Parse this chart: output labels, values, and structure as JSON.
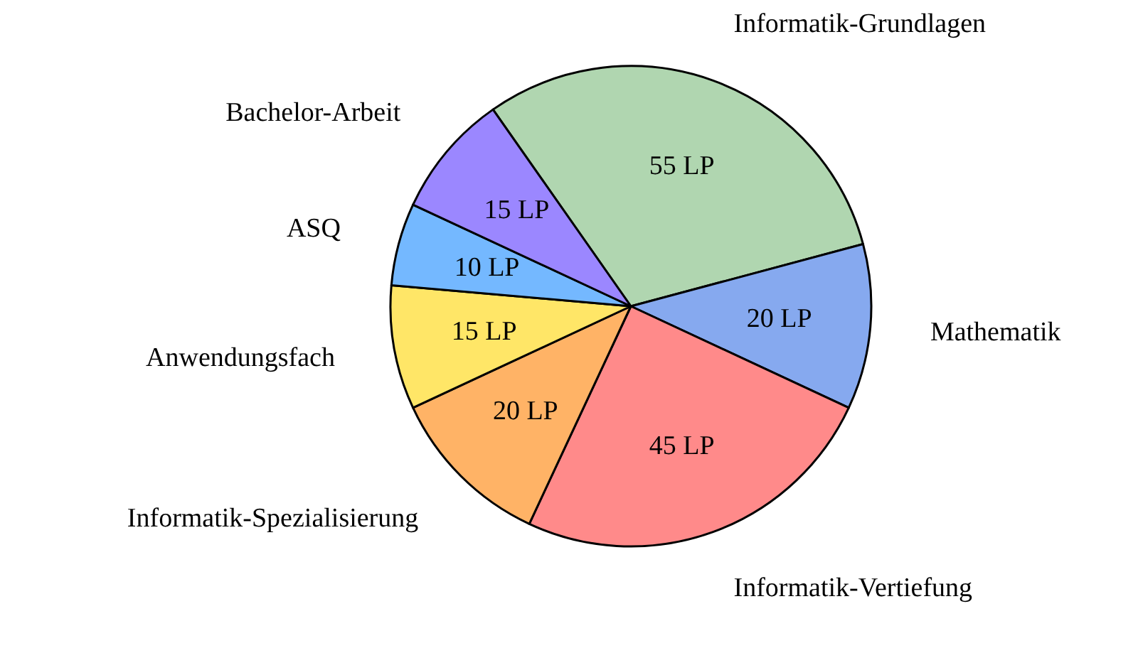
{
  "chart_data": {
    "type": "pie",
    "categories": [
      "Informatik-Grundlagen",
      "Mathematik",
      "Informatik-Vertiefung",
      "Informatik-Spezialisierung",
      "Anwendungsfach",
      "ASQ",
      "Bachelor-Arbeit"
    ],
    "values": [
      55,
      20,
      45,
      20,
      15,
      10,
      15
    ],
    "colors": [
      "#b0d6b0",
      "#86a9ef",
      "#ff8a8a",
      "#ffb366",
      "#ffe667",
      "#74b8ff",
      "#9b87ff"
    ],
    "value_labels": [
      "55 LP",
      "20 LP",
      "45 LP",
      "20 LP",
      "15 LP",
      "10 LP",
      "15 LP"
    ]
  }
}
